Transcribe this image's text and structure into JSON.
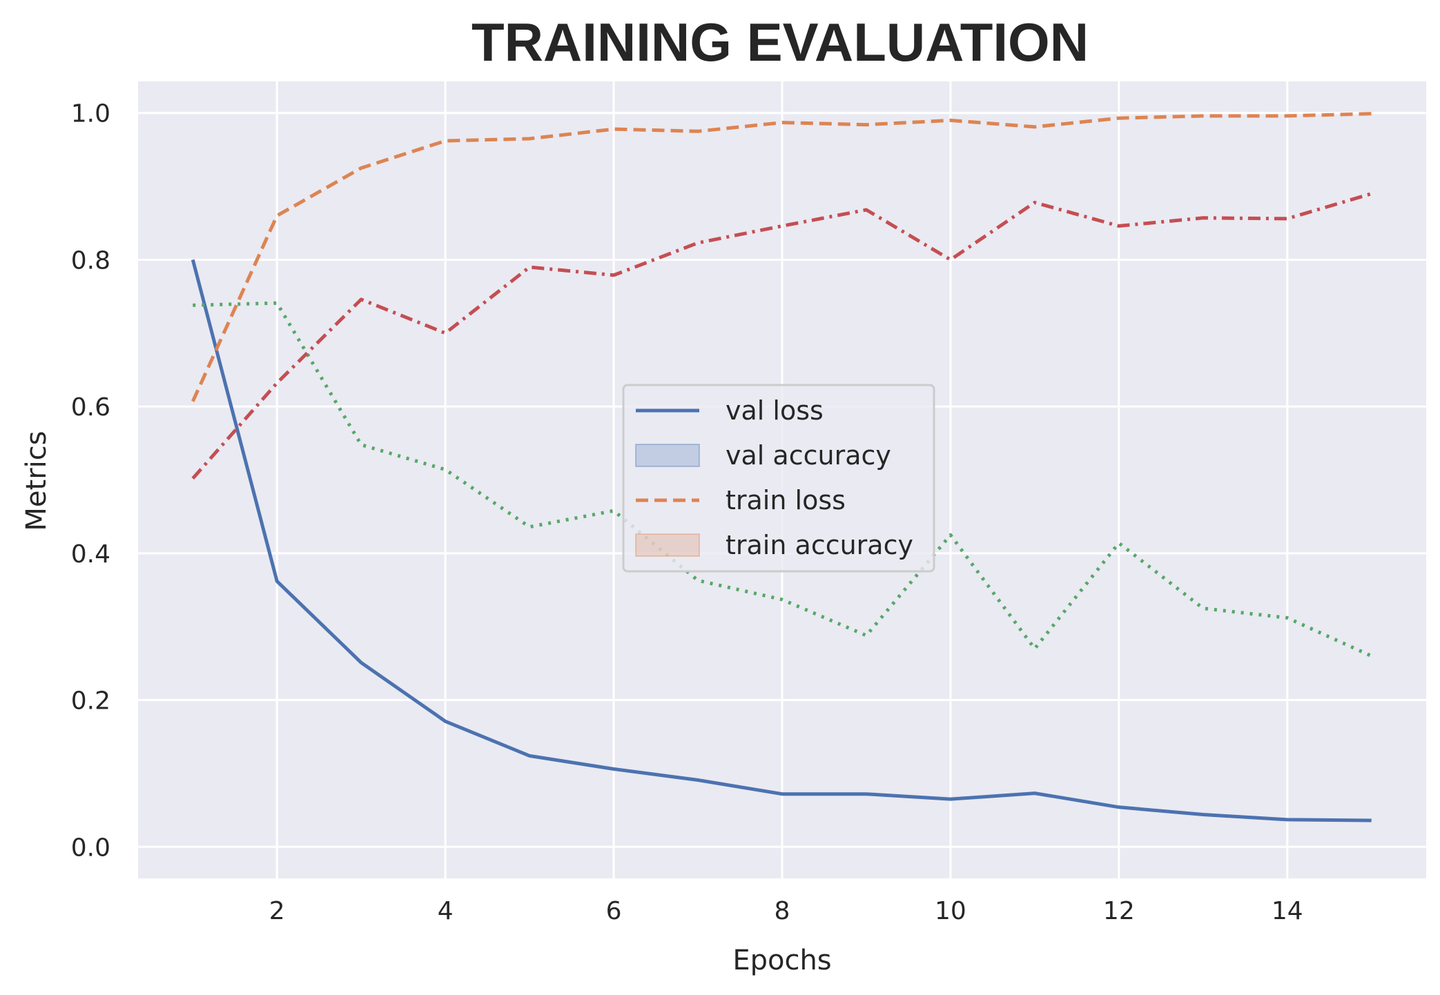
{
  "chart_data": {
    "type": "line",
    "title": "TRAINING EVALUATION",
    "xlabel": "Epochs",
    "ylabel": "Metrics",
    "xlim": [
      0.35,
      15.65
    ],
    "ylim": [
      -0.043,
      1.043
    ],
    "xticks": [
      2,
      4,
      6,
      8,
      10,
      12,
      14
    ],
    "yticks": [
      0.0,
      0.2,
      0.4,
      0.6,
      0.8,
      1.0
    ],
    "xtick_labels": [
      "2",
      "4",
      "6",
      "8",
      "10",
      "12",
      "14"
    ],
    "ytick_labels": [
      "0.0",
      "0.2",
      "0.4",
      "0.6",
      "0.8",
      "1.0"
    ],
    "grid": true,
    "background": "#eaeaf2",
    "legend_position": "center-right",
    "legend": [
      {
        "label": "val loss",
        "kind": "line",
        "color": "#4c72b0",
        "dash": ""
      },
      {
        "label": "val accuracy",
        "kind": "patch",
        "color": "#4c72b0"
      },
      {
        "label": "train loss",
        "kind": "line",
        "color": "#dd8452",
        "dash": "18,9"
      },
      {
        "label": "train accuracy",
        "kind": "patch",
        "color": "#dd8452"
      }
    ],
    "x": [
      1,
      2,
      3,
      4,
      5,
      6,
      7,
      8,
      9,
      10,
      11,
      12,
      13,
      14,
      15
    ],
    "series": [
      {
        "name": "val loss",
        "color": "#4c72b0",
        "style": "solid",
        "values": [
          0.8,
          0.362,
          0.251,
          0.171,
          0.124,
          0.106,
          0.091,
          0.072,
          0.072,
          0.065,
          0.073,
          0.054,
          0.044,
          0.037,
          0.036
        ]
      },
      {
        "color": "#dd8452",
        "style": "dashed",
        "values": [
          0.607,
          0.86,
          0.925,
          0.962,
          0.965,
          0.978,
          0.975,
          0.987,
          0.984,
          0.99,
          0.981,
          0.993,
          0.996,
          0.996,
          0.999
        ]
      },
      {
        "color": "#55a868",
        "style": "dotted",
        "values": [
          0.738,
          0.741,
          0.548,
          0.514,
          0.436,
          0.458,
          0.363,
          0.337,
          0.288,
          0.425,
          0.27,
          0.414,
          0.325,
          0.312,
          0.26
        ]
      },
      {
        "color": "#c44e52",
        "style": "dashdot",
        "values": [
          0.502,
          0.632,
          0.746,
          0.7,
          0.79,
          0.779,
          0.823,
          0.846,
          0.868,
          0.8,
          0.878,
          0.846,
          0.857,
          0.856,
          0.89
        ]
      }
    ]
  }
}
